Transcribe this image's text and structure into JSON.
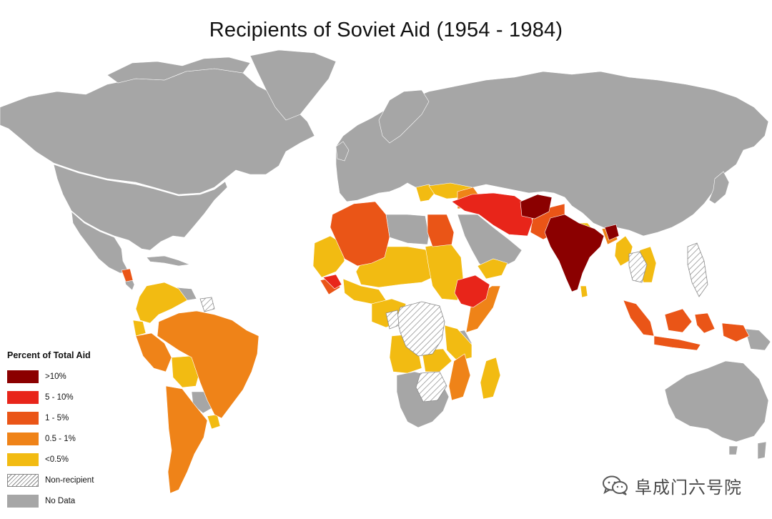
{
  "title": "Recipients of Soviet Aid (1954 - 1984)",
  "legend": {
    "title": "Percent of Total Aid",
    "items": [
      {
        "label": ">10%",
        "color": "#8b0000",
        "pattern": "solid"
      },
      {
        "label": "5 - 10%",
        "color": "#e8251a",
        "pattern": "solid"
      },
      {
        "label": "1 - 5%",
        "color": "#ea5517",
        "pattern": "solid"
      },
      {
        "label": "0.5 - 1%",
        "color": "#ef8318",
        "pattern": "solid"
      },
      {
        "label": "<0.5%",
        "color": "#f2bb12",
        "pattern": "solid"
      },
      {
        "label": "Non-recipient",
        "color": "#ffffff",
        "pattern": "hatch"
      },
      {
        "label": "No Data",
        "color": "#a6a6a6",
        "pattern": "solid"
      }
    ]
  },
  "colors": {
    "no_data": "#a6a6a6",
    "background": "#ffffff",
    "hatch_line": "#8a8a8a"
  },
  "categories": {
    "gt10": [
      "India",
      "Afghanistan",
      "Bangladesh"
    ],
    "5to10": [
      "Iran",
      "Iraq",
      "Turkey",
      "Ethiopia"
    ],
    "1to5": [
      "Algeria",
      "Egypt",
      "Pakistan",
      "Morocco",
      "Guinea",
      "Indonesia",
      "Nicaragua",
      "Myanmar"
    ],
    "0.5to1": [
      "Brazil",
      "Argentina",
      "Peru",
      "Mozambique",
      "Somalia",
      "Syria",
      "Tanzania"
    ],
    "lt0.5": [
      "Mali",
      "Niger",
      "Chad",
      "Sudan",
      "Libya",
      "Colombia",
      "Venezuela",
      "Bolivia",
      "Angola",
      "Madagascar",
      "Yemen",
      "Greece"
    ],
    "non_recipient": [
      "DR Congo",
      "Zimbabwe",
      "Philippines",
      "Thailand",
      "Guyana"
    ]
  },
  "watermark": {
    "text": "阜成门六号院",
    "icon": "wechat-icon"
  }
}
